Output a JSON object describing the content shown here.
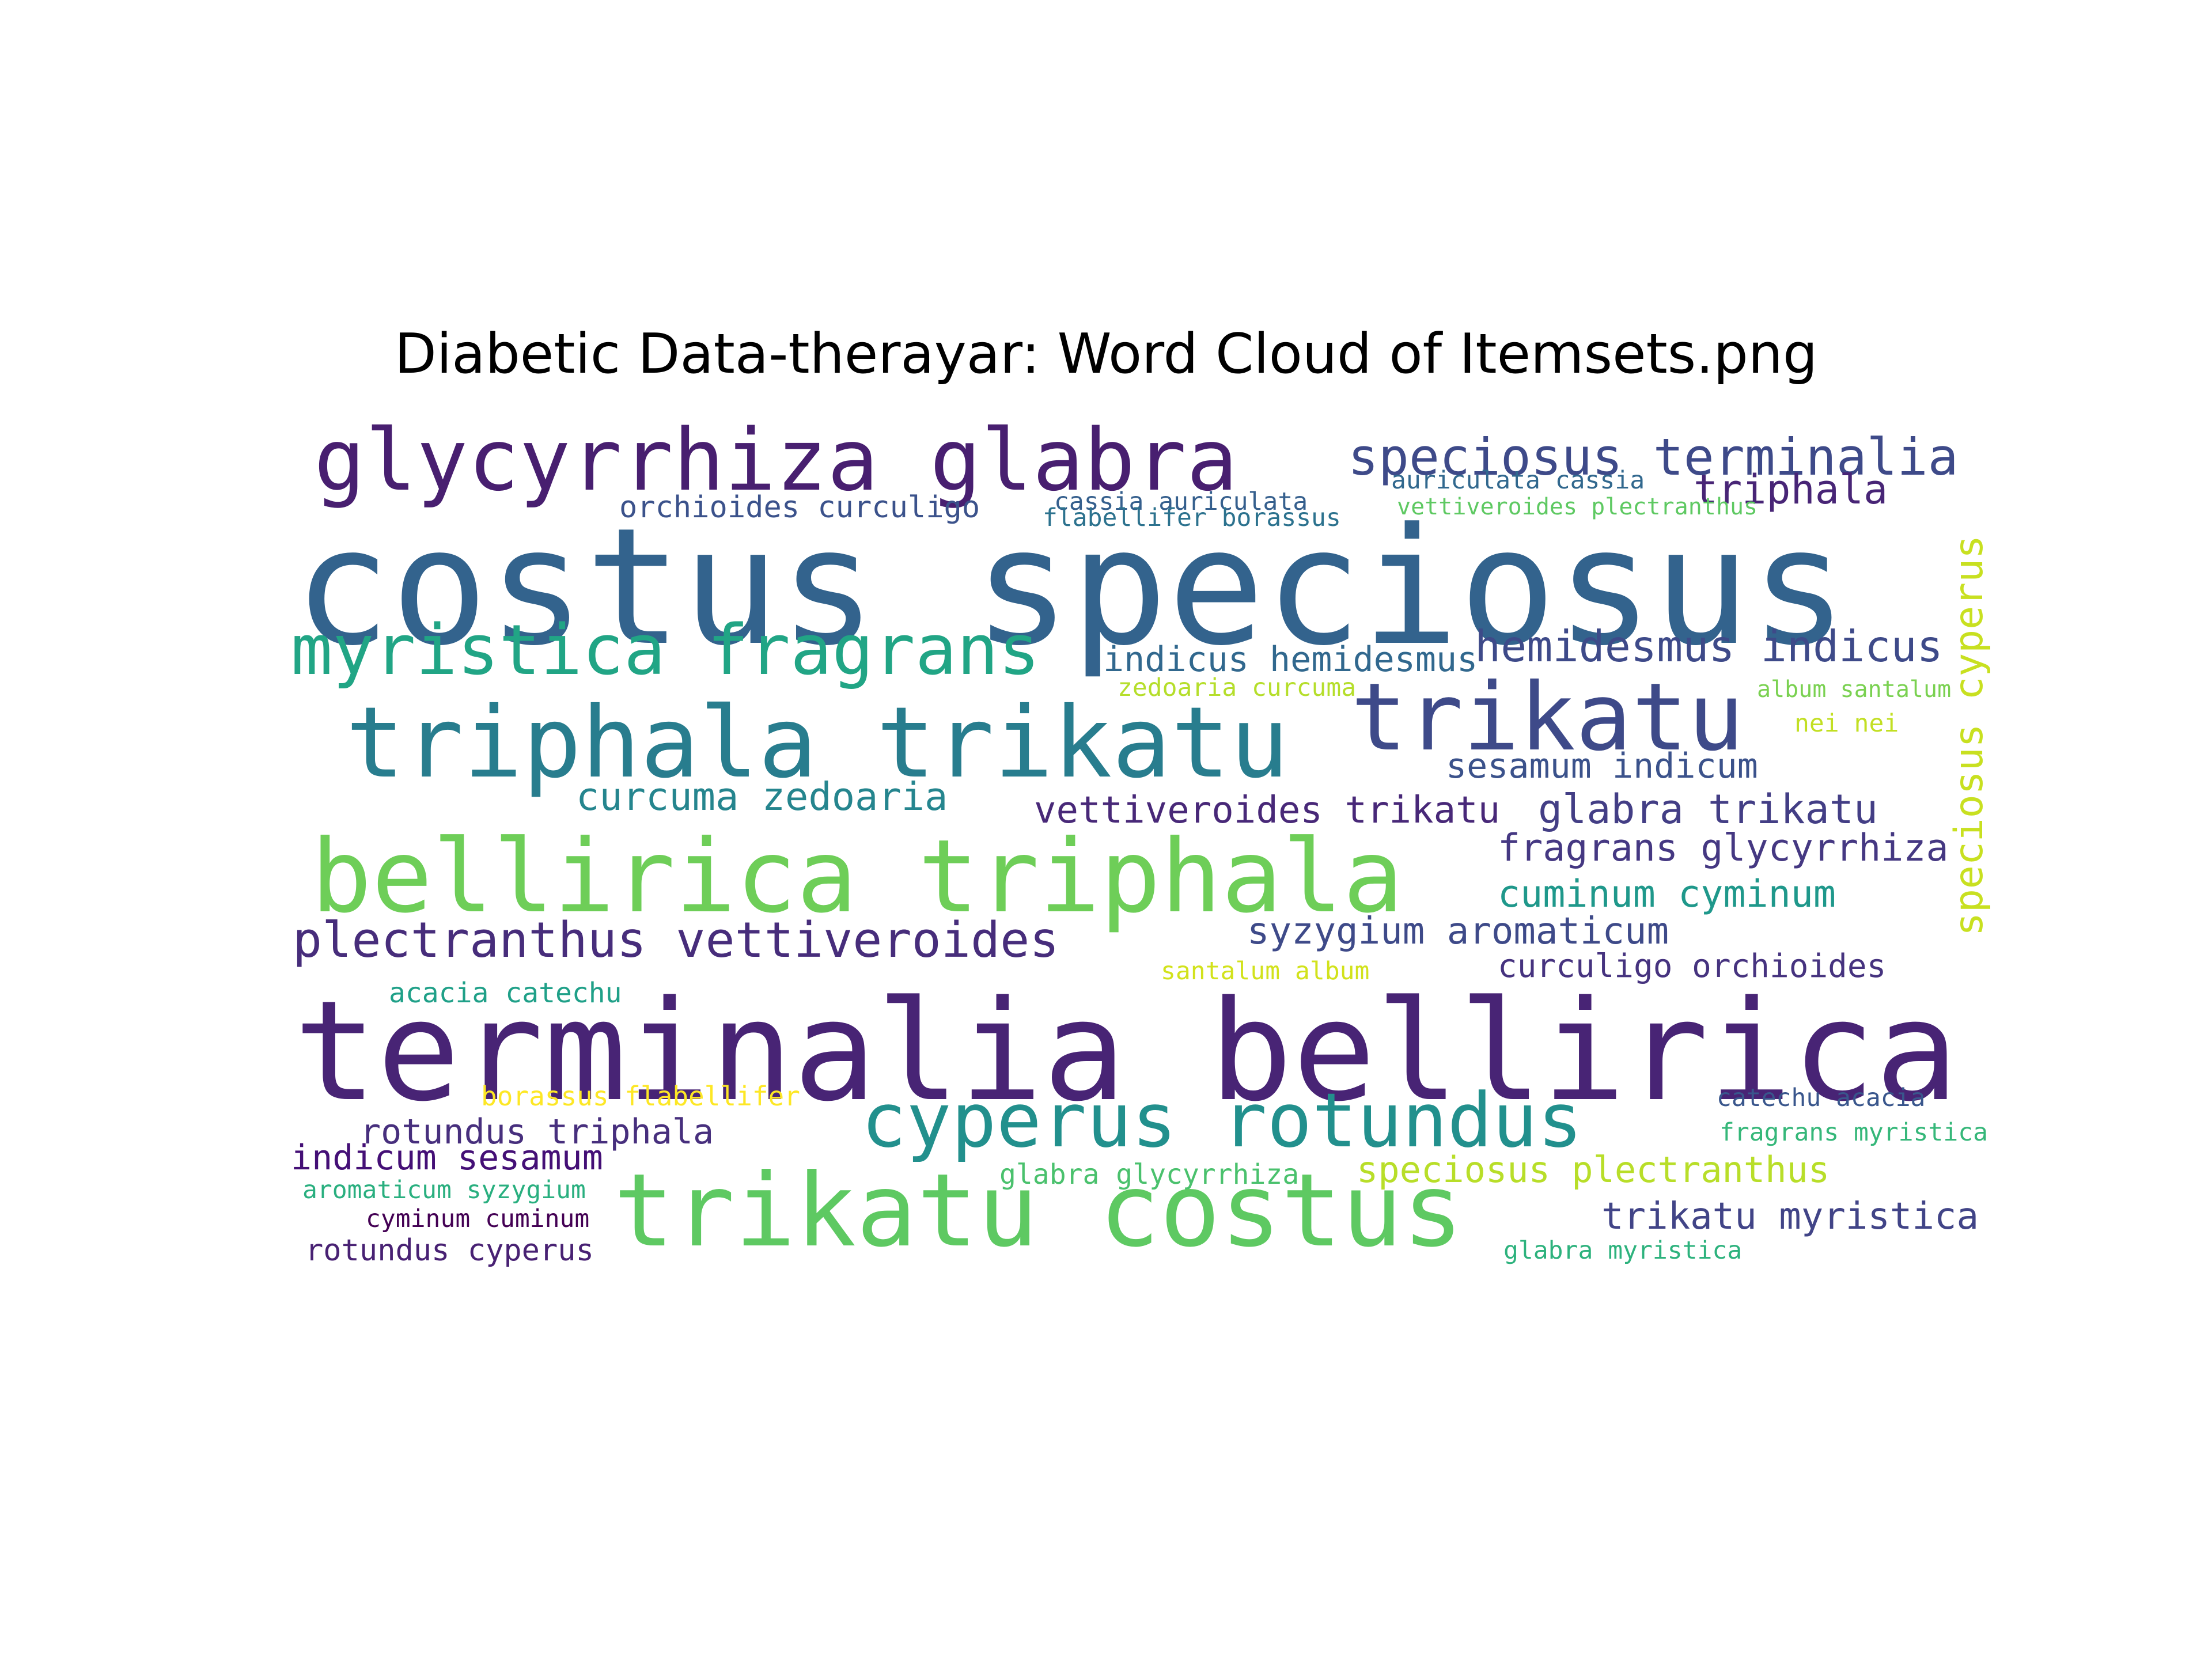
{
  "title": "Diabetic Data-therayar: Word Cloud of Itemsets.png",
  "words": [
    {
      "text": "glycyrrhiza glabra",
      "color": "#481f70"
    },
    {
      "text": "speciosus terminalia",
      "color": "#3e4a89"
    },
    {
      "text": "triphala",
      "color": "#482576"
    },
    {
      "text": "orchioides curculigo",
      "color": "#3b528b"
    },
    {
      "text": "cassia auriculata",
      "color": "#355f8d"
    },
    {
      "text": "flabellifer borassus",
      "color": "#2c728e"
    },
    {
      "text": "auriculata cassia",
      "color": "#31688e"
    },
    {
      "text": "vettiveroides plectranthus",
      "color": "#5ec962"
    },
    {
      "text": "costus speciosus",
      "color": "#33638d"
    },
    {
      "text": "myristica fragrans",
      "color": "#21a585"
    },
    {
      "text": "indicus hemidesmus",
      "color": "#31688e"
    },
    {
      "text": "hemidesmus indicus",
      "color": "#3e4a89"
    },
    {
      "text": "triphala trikatu",
      "color": "#287d8e"
    },
    {
      "text": "trikatu",
      "color": "#3e4a89"
    },
    {
      "text": "zedoaria curcuma",
      "color": "#b5de2b"
    },
    {
      "text": "album santalum",
      "color": "#7ad151"
    },
    {
      "text": "nei nei",
      "color": "#c2df23"
    },
    {
      "text": "sesamum indicum",
      "color": "#3b528b"
    },
    {
      "text": "curcuma zedoaria",
      "color": "#25858e"
    },
    {
      "text": "vettiveroides trikatu",
      "color": "#482878"
    },
    {
      "text": "glabra trikatu",
      "color": "#433e85"
    },
    {
      "text": "bellirica triphala",
      "color": "#6ece58"
    },
    {
      "text": "fragrans glycyrrhiza",
      "color": "#453882"
    },
    {
      "text": "cuminum cyminum",
      "color": "#1f988b"
    },
    {
      "text": "speciosus cyperus",
      "color": "#c8e020"
    },
    {
      "text": "plectranthus vettiveroides",
      "color": "#472d7b"
    },
    {
      "text": "syzygium aromaticum",
      "color": "#3e4a89"
    },
    {
      "text": "santalum album",
      "color": "#d2e21b"
    },
    {
      "text": "curculigo orchioides",
      "color": "#46337f"
    },
    {
      "text": "acacia catechu",
      "color": "#1fa088"
    },
    {
      "text": "terminalia bellirica",
      "color": "#482475"
    },
    {
      "text": "borassus flabellifer",
      "color": "#fde725"
    },
    {
      "text": "cyperus rotundus",
      "color": "#22908d"
    },
    {
      "text": "catechu acacia",
      "color": "#39568c"
    },
    {
      "text": "rotundus triphala",
      "color": "#472f7d"
    },
    {
      "text": "fragrans myristica",
      "color": "#35b779"
    },
    {
      "text": "indicum sesamum",
      "color": "#440f76"
    },
    {
      "text": "glabra glycyrrhiza",
      "color": "#4ac16d"
    },
    {
      "text": "speciosus plectranthus",
      "color": "#b8de29"
    },
    {
      "text": "aromaticum syzygium",
      "color": "#29af7f"
    },
    {
      "text": "trikatu costus",
      "color": "#5ec962"
    },
    {
      "text": "cyminum cuminum",
      "color": "#440154"
    },
    {
      "text": "trikatu myristica",
      "color": "#414487"
    },
    {
      "text": "rotundus cyperus",
      "color": "#482173"
    },
    {
      "text": "glabra myristica",
      "color": "#2db27d"
    }
  ]
}
